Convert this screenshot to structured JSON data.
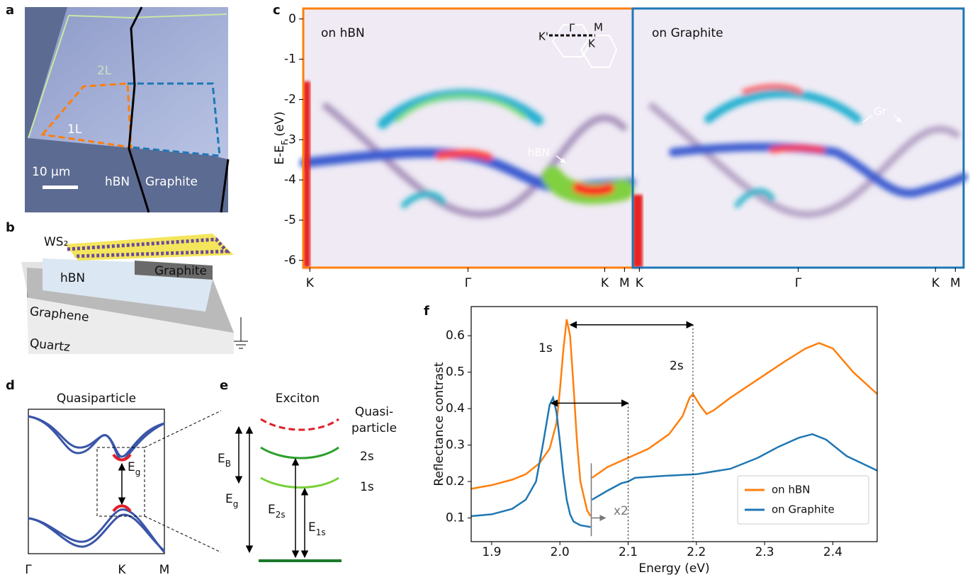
{
  "panels": {
    "a": {
      "label": "a",
      "layers": [
        "2L",
        "1L"
      ],
      "scale_bar": "10 μm",
      "regions": [
        "hBN",
        "Graphite"
      ]
    },
    "b": {
      "label": "b",
      "top": "WS₂",
      "layers": [
        "Graphite",
        "hBN",
        "Graphene",
        "Quartz"
      ]
    },
    "c": {
      "label": "c",
      "ylabel": {
        "main": "E-E",
        "sub": "F",
        "unit": " (eV)"
      },
      "ylim": [
        -6.18,
        0.26
      ],
      "yticks": [
        0,
        -1,
        -2,
        -3,
        -4,
        -5,
        -6
      ],
      "kpoints": [
        "K",
        "Γ",
        "K",
        "M"
      ],
      "maps": [
        {
          "title": "on hBN",
          "note": "hBN"
        },
        {
          "title": "on Graphite",
          "note": "Gr"
        }
      ],
      "inset": [
        "K'",
        "Γ",
        "M",
        "K"
      ]
    },
    "d": {
      "label": "d",
      "title": "Quasiparticle",
      "gap": {
        "main": "E",
        "sub": "g"
      },
      "kpoints": [
        "Γ",
        "K",
        "M"
      ]
    },
    "e": {
      "label": "e",
      "title": "Exciton",
      "levels": [
        "Quasi-",
        "particle",
        "2s",
        "1s"
      ],
      "energies": [
        {
          "main": "E",
          "sub": "B"
        },
        {
          "main": "E",
          "sub": "g"
        },
        {
          "main": "E",
          "sub": "2s"
        },
        {
          "main": "E",
          "sub": "1s"
        }
      ]
    }
  },
  "chart_data": {
    "type": "line",
    "label": "f",
    "xlabel": "Energy (eV)",
    "ylabel": "Reflectance contrast",
    "xlim": [
      1.87,
      2.465
    ],
    "ylim": [
      0.035,
      0.68
    ],
    "xticks": [
      1.9,
      {
        "value": 2,
        "label": "2.0"
      },
      2.1,
      2.2,
      2.3,
      2.4
    ],
    "yticks": [
      0.1,
      0.2,
      0.3,
      0.4,
      0.5,
      0.6
    ],
    "legend": "lower right",
    "annotations": [
      "1s",
      "2s",
      "x2"
    ],
    "spacings": [
      {
        "from": 2.015,
        "to": 2.195,
        "at": 0.63
      },
      {
        "from": 1.987,
        "to": 2.1,
        "at": 0.415
      }
    ],
    "series": [
      {
        "name": "on hBN",
        "color": "#ff7f0e",
        "x": [
          1.87,
          1.9,
          1.93,
          1.95,
          1.97,
          1.985,
          1.995,
          2.0,
          2.005,
          2.01,
          2.015,
          2.02,
          2.025,
          2.03,
          2.04,
          2.045,
          2.046,
          2.047,
          2.07,
          2.1,
          2.13,
          2.16,
          2.18,
          2.19,
          2.195,
          2.205,
          2.215,
          2.225,
          2.25,
          2.29,
          2.33,
          2.36,
          2.38,
          2.4,
          2.43,
          2.465
        ],
        "values": [
          0.18,
          0.19,
          0.205,
          0.22,
          0.25,
          0.29,
          0.36,
          0.45,
          0.56,
          0.645,
          0.6,
          0.46,
          0.31,
          0.2,
          0.12,
          0.105,
          null,
          0.21,
          0.24,
          0.265,
          0.29,
          0.33,
          0.38,
          0.43,
          0.44,
          0.41,
          0.385,
          0.395,
          0.43,
          0.48,
          0.53,
          0.565,
          0.58,
          0.565,
          0.5,
          0.44
        ]
      },
      {
        "name": "on Graphite",
        "color": "#1f77b4",
        "x": [
          1.87,
          1.9,
          1.93,
          1.95,
          1.965,
          1.975,
          1.985,
          1.99,
          1.995,
          2.0,
          2.005,
          2.01,
          2.015,
          2.02,
          2.03,
          2.045,
          2.046,
          2.047,
          2.07,
          2.09,
          2.1,
          2.11,
          2.15,
          2.2,
          2.25,
          2.29,
          2.32,
          2.35,
          2.37,
          2.39,
          2.42,
          2.465
        ],
        "values": [
          0.105,
          0.11,
          0.125,
          0.15,
          0.2,
          0.3,
          0.41,
          0.43,
          0.39,
          0.31,
          0.22,
          0.15,
          0.11,
          0.09,
          0.08,
          0.075,
          null,
          0.15,
          0.175,
          0.195,
          0.2,
          0.21,
          0.215,
          0.22,
          0.235,
          0.265,
          0.295,
          0.32,
          0.33,
          0.315,
          0.27,
          0.23
        ]
      }
    ]
  }
}
